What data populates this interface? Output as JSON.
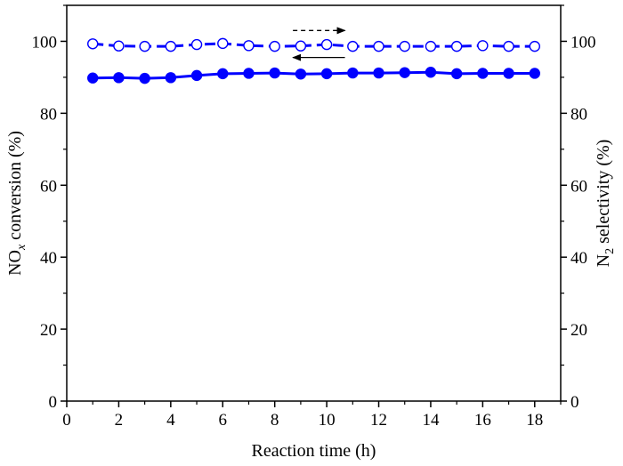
{
  "chart_data": {
    "type": "line",
    "xlabel": "Reaction time (h)",
    "ylabel_left": {
      "base": "NO",
      "sub": "x",
      "rest": " conversion (%)"
    },
    "ylabel_right": {
      "base": "N",
      "sub": "2",
      "rest": " selectivity (%)"
    },
    "xlim": [
      0,
      19
    ],
    "ylim": [
      0,
      110
    ],
    "y2lim": [
      0,
      110
    ],
    "xticks": [
      "0",
      "2",
      "4",
      "6",
      "8",
      "10",
      "12",
      "14",
      "16",
      "18"
    ],
    "yticks": [
      "0",
      "20",
      "40",
      "60",
      "80",
      "100"
    ],
    "y2ticks": [
      "0",
      "20",
      "40",
      "60",
      "80",
      "100"
    ],
    "grid": false,
    "color": "#0000ff",
    "x": [
      1,
      2,
      3,
      4,
      5,
      6,
      7,
      8,
      9,
      10,
      11,
      12,
      13,
      14,
      15,
      16,
      17,
      18
    ],
    "series": [
      {
        "axis": "left",
        "marker": "filled-circle",
        "line": "solid",
        "values": [
          89.8,
          89.9,
          89.7,
          89.9,
          90.5,
          91.0,
          91.1,
          91.2,
          90.9,
          91.0,
          91.2,
          91.2,
          91.3,
          91.4,
          91.0,
          91.1,
          91.1,
          91.1
        ]
      },
      {
        "axis": "right",
        "marker": "open-circle",
        "line": "dashed",
        "values": [
          99.3,
          98.7,
          98.6,
          98.6,
          99.1,
          99.4,
          98.8,
          98.6,
          98.7,
          99.1,
          98.6,
          98.6,
          98.6,
          98.6,
          98.6,
          98.8,
          98.6,
          98.6
        ]
      }
    ],
    "annotations": [
      {
        "type": "arrow",
        "style": "dashed",
        "direction": "right",
        "points_to": "right-axis",
        "from": [
          8.7,
          103
        ],
        "to": [
          10.7,
          103
        ]
      },
      {
        "type": "arrow",
        "style": "solid",
        "direction": "left",
        "points_to": "left-axis",
        "from": [
          10.7,
          95.5
        ],
        "to": [
          8.7,
          95.5
        ]
      }
    ]
  }
}
